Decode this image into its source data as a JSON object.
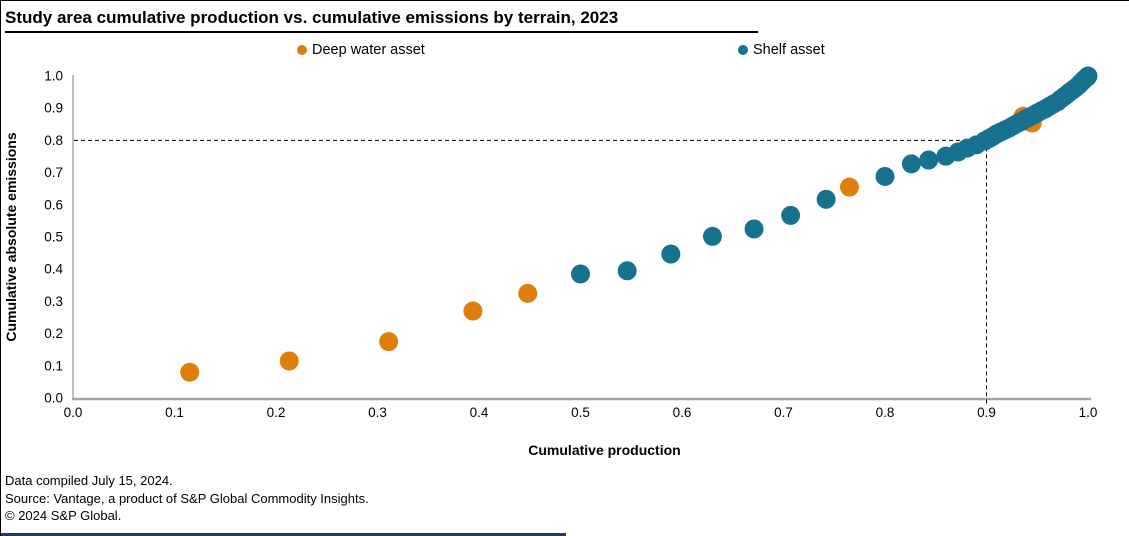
{
  "title": "Study area cumulative production vs. cumulative emissions by terrain, 2023",
  "legend": {
    "items": [
      {
        "label": "Deep water asset",
        "color": "#E07E0D"
      },
      {
        "label": "Shelf asset",
        "color": "#17728F"
      }
    ]
  },
  "footer": {
    "line1": "Data compiled July 15, 2024.",
    "line2": "Source: Vantage, a product of S&P Global Commodity Insights.",
    "line3": "© 2024 S&P Global."
  },
  "colors": {
    "deep_water": "#E07E0D",
    "shelf": "#17728F",
    "axis": "#A6A6A6",
    "reference_line": "#000000",
    "bottom_bar": "#24395E"
  },
  "chart_data": {
    "type": "scatter",
    "title": "Study area cumulative production vs. cumulative emissions by terrain, 2023",
    "xlabel": "Cumulative production",
    "ylabel": "Cumulative absolute emissions",
    "xlim": [
      0,
      1
    ],
    "ylim": [
      0,
      1
    ],
    "xticks": [
      "0.0",
      "0.1",
      "0.2",
      "0.3",
      "0.4",
      "0.5",
      "0.6",
      "0.7",
      "0.8",
      "0.9",
      "1.0"
    ],
    "yticks": [
      "0.0",
      "0.1",
      "0.2",
      "0.3",
      "0.4",
      "0.5",
      "0.6",
      "0.7",
      "0.8",
      "0.9",
      "1.0"
    ],
    "grid": false,
    "legend_position": "top",
    "reference_lines": {
      "horizontal_y": 0.8,
      "vertical_x": 0.9,
      "style": "dashed"
    },
    "marker_radius_px": 9.5,
    "series": [
      {
        "name": "Deep water asset",
        "color": "#E07E0D",
        "points": [
          [
            0.115,
            0.08
          ],
          [
            0.213,
            0.115
          ],
          [
            0.311,
            0.175
          ],
          [
            0.394,
            0.27
          ],
          [
            0.448,
            0.325
          ],
          [
            0.765,
            0.655
          ],
          [
            0.936,
            0.875
          ],
          [
            0.945,
            0.854
          ]
        ]
      },
      {
        "name": "Shelf asset",
        "color": "#17728F",
        "points": [
          [
            0.5,
            0.385
          ],
          [
            0.546,
            0.395
          ],
          [
            0.589,
            0.447
          ],
          [
            0.63,
            0.502
          ],
          [
            0.671,
            0.525
          ],
          [
            0.707,
            0.567
          ],
          [
            0.742,
            0.617
          ],
          [
            0.8,
            0.688
          ],
          [
            0.826,
            0.727
          ],
          [
            0.843,
            0.739
          ],
          [
            0.86,
            0.751
          ],
          [
            0.872,
            0.764
          ],
          [
            0.881,
            0.776
          ],
          [
            0.89,
            0.786
          ],
          [
            0.898,
            0.798
          ],
          [
            0.902,
            0.805
          ],
          [
            0.906,
            0.812
          ],
          [
            0.91,
            0.82
          ],
          [
            0.914,
            0.826
          ],
          [
            0.918,
            0.832
          ],
          [
            0.922,
            0.838
          ],
          [
            0.926,
            0.845
          ],
          [
            0.93,
            0.852
          ],
          [
            0.934,
            0.858
          ],
          [
            0.938,
            0.866
          ],
          [
            0.942,
            0.872
          ],
          [
            0.946,
            0.878
          ],
          [
            0.95,
            0.885
          ],
          [
            0.954,
            0.892
          ],
          [
            0.958,
            0.898
          ],
          [
            0.962,
            0.906
          ],
          [
            0.966,
            0.913
          ],
          [
            0.97,
            0.92
          ],
          [
            0.973,
            0.928
          ],
          [
            0.976,
            0.935
          ],
          [
            0.979,
            0.942
          ],
          [
            0.982,
            0.95
          ],
          [
            0.985,
            0.957
          ],
          [
            0.988,
            0.964
          ],
          [
            0.991,
            0.972
          ],
          [
            0.993,
            0.979
          ],
          [
            0.995,
            0.985
          ],
          [
            0.997,
            0.991
          ],
          [
            0.999,
            0.996
          ],
          [
            1.0,
            1.0
          ]
        ]
      }
    ]
  }
}
